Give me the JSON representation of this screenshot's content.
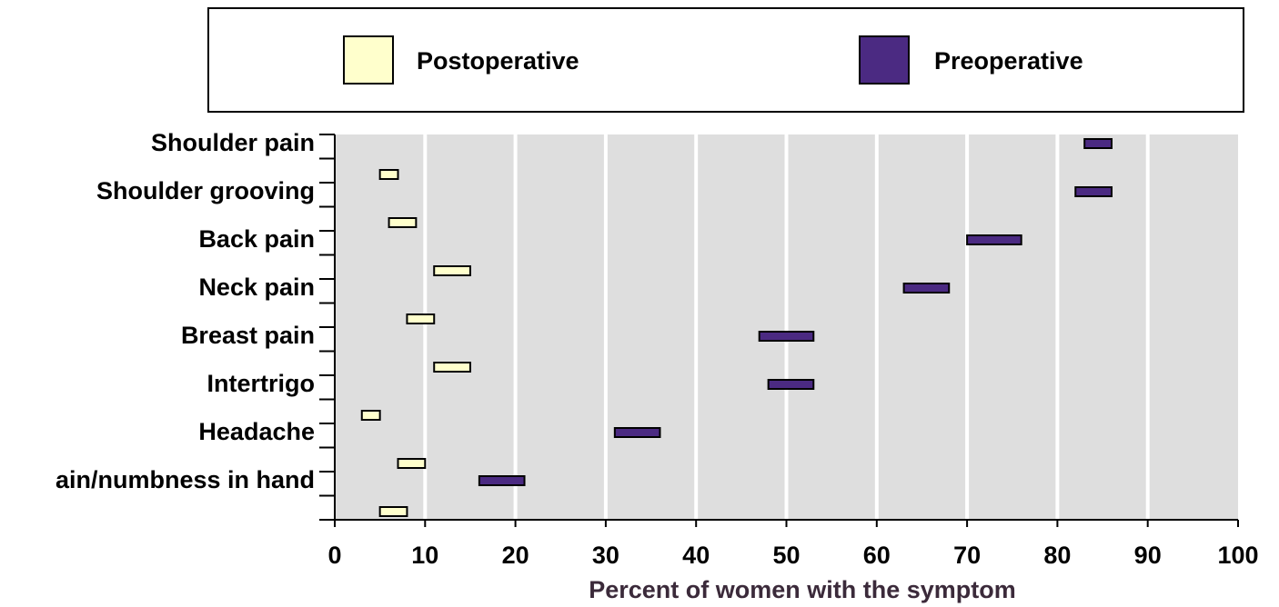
{
  "chart_data": {
    "type": "bar",
    "chart_style": "floating range bars (horizontal)",
    "xlabel": "Percent of women with the symptom",
    "ylabel": "",
    "xlim": [
      0,
      100
    ],
    "xticks": [
      0,
      10,
      20,
      30,
      40,
      50,
      60,
      70,
      80,
      90,
      100
    ],
    "grid": true,
    "legend_position": "top",
    "categories": [
      "Shoulder pain",
      "Shoulder grooving",
      "Back pain",
      "Neck pain",
      "Breast pain",
      "Intertrigo",
      "Headache",
      "ain/numbness in hand"
    ],
    "series": [
      {
        "name": "Preoperative",
        "color": "#4b2a82",
        "ranges": [
          [
            83,
            86
          ],
          [
            82,
            86
          ],
          [
            70,
            76
          ],
          [
            63,
            68
          ],
          [
            47,
            53
          ],
          [
            48,
            53
          ],
          [
            31,
            36
          ],
          [
            16,
            21
          ]
        ]
      },
      {
        "name": "Postoperative",
        "color": "#ffffcc",
        "ranges": [
          [
            5,
            7
          ],
          [
            6,
            9
          ],
          [
            11,
            15
          ],
          [
            8,
            11
          ],
          [
            11,
            15
          ],
          [
            3,
            5
          ],
          [
            7,
            10
          ],
          [
            5,
            8
          ]
        ]
      }
    ],
    "colors": {
      "plot_bg": "#dedede",
      "gridline": "#ffffff",
      "axis_label": "#3b2a3a"
    }
  }
}
